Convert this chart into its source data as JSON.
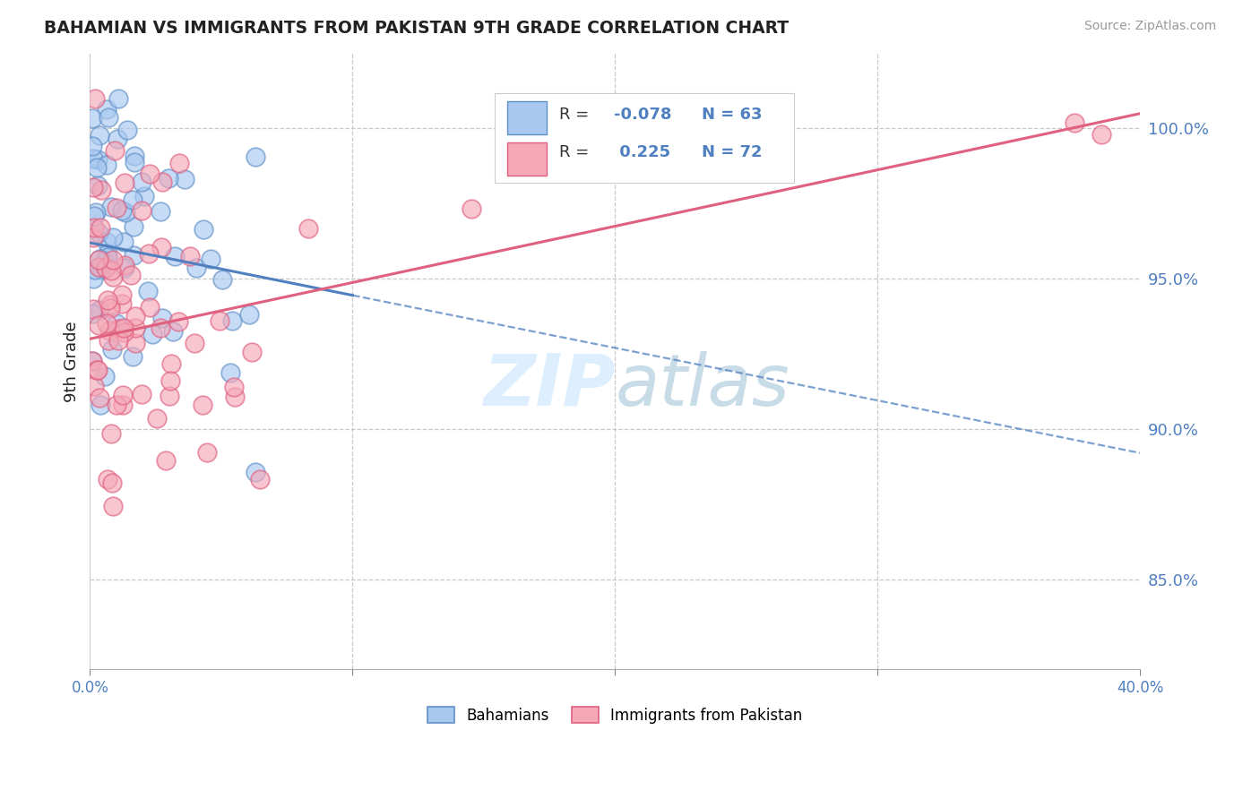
{
  "title": "BAHAMIAN VS IMMIGRANTS FROM PAKISTAN 9TH GRADE CORRELATION CHART",
  "source": "Source: ZipAtlas.com",
  "ylabel": "9th Grade",
  "yticks": [
    85.0,
    90.0,
    95.0,
    100.0
  ],
  "xlim": [
    0.0,
    0.4
  ],
  "ylim": [
    82.0,
    102.5
  ],
  "blue_R": -0.078,
  "blue_N": 63,
  "pink_R": 0.225,
  "pink_N": 72,
  "legend_label_blue": "Bahamians",
  "legend_label_pink": "Immigrants from Pakistan",
  "blue_fill": "#a8c8f0",
  "pink_fill": "#f4a8b8",
  "blue_edge": "#6090c8",
  "pink_edge": "#e06080",
  "blue_line": "#5080c0",
  "pink_line": "#e06080",
  "grid_color": "#c8c8c8",
  "background_color": "#ffffff",
  "watermark_color": "#ddeeff",
  "title_color": "#222222",
  "source_color": "#999999",
  "axis_label_color": "#5080c0",
  "legend_text_color_label": "#333333",
  "legend_text_color_value": "#5080c0"
}
